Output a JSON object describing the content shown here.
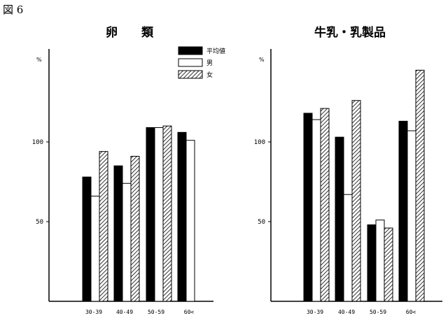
{
  "figure_label": "図 6",
  "legend": [
    "平均値",
    "男",
    "女"
  ],
  "chart_data": [
    {
      "type": "bar",
      "title": "卵　　類",
      "ylabel": "%",
      "categories": [
        "30-39",
        "40-49",
        "50-59",
        "60<"
      ],
      "yticks": [
        50,
        100
      ],
      "ylim": [
        0,
        150
      ],
      "series": [
        {
          "name": "平均値",
          "values": [
            78,
            85,
            109,
            106
          ],
          "fill": "#000000"
        },
        {
          "name": "男",
          "values": [
            66,
            74,
            109,
            101
          ],
          "fill": "#ffffff"
        },
        {
          "name": "女",
          "values": [
            94,
            91,
            110,
            null
          ],
          "fill": "hatch"
        }
      ]
    },
    {
      "type": "bar",
      "title": "牛乳・乳製品",
      "ylabel": "%",
      "categories": [
        "30-39",
        "40-49",
        "50-59",
        "60<"
      ],
      "yticks": [
        50,
        100
      ],
      "ylim": [
        0,
        150
      ],
      "series": [
        {
          "name": "平均値",
          "values": [
            118,
            103,
            48,
            113
          ],
          "fill": "#000000"
        },
        {
          "name": "男",
          "values": [
            114,
            67,
            51,
            107
          ],
          "fill": "#ffffff"
        },
        {
          "name": "女",
          "values": [
            121,
            126,
            46,
            145
          ],
          "fill": "hatch"
        }
      ]
    }
  ]
}
